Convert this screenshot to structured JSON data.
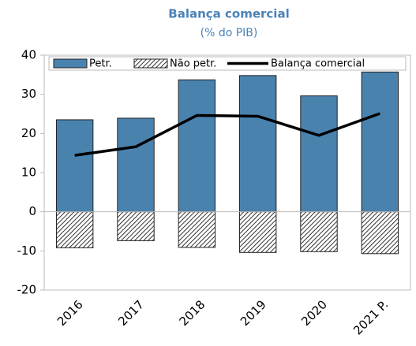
{
  "chart_data": {
    "type": "bar",
    "title": "Balança comercial",
    "subtitle": "(% do PIB)",
    "categories": [
      "2016",
      "2017",
      "2018",
      "2019",
      "2020",
      "2021 P."
    ],
    "series": [
      {
        "name": "Petr.",
        "type": "bar",
        "color": "#4a82ae",
        "values": [
          23.5,
          23.9,
          33.7,
          34.8,
          29.6,
          35.7
        ]
      },
      {
        "name": "Não petr.",
        "type": "bar",
        "pattern": "hatch",
        "color": "#000000",
        "values": [
          -9.2,
          -7.4,
          -9.1,
          -10.4,
          -10.2,
          -10.7
        ]
      },
      {
        "name": "Balança comercial",
        "type": "line",
        "color": "#000000",
        "values": [
          14.4,
          16.6,
          24.6,
          24.4,
          19.5,
          25.1
        ]
      }
    ],
    "ylim": [
      -20,
      40
    ],
    "yticks": [
      -20,
      -10,
      0,
      10,
      20,
      30,
      40
    ],
    "legend": "top",
    "grid": false
  }
}
